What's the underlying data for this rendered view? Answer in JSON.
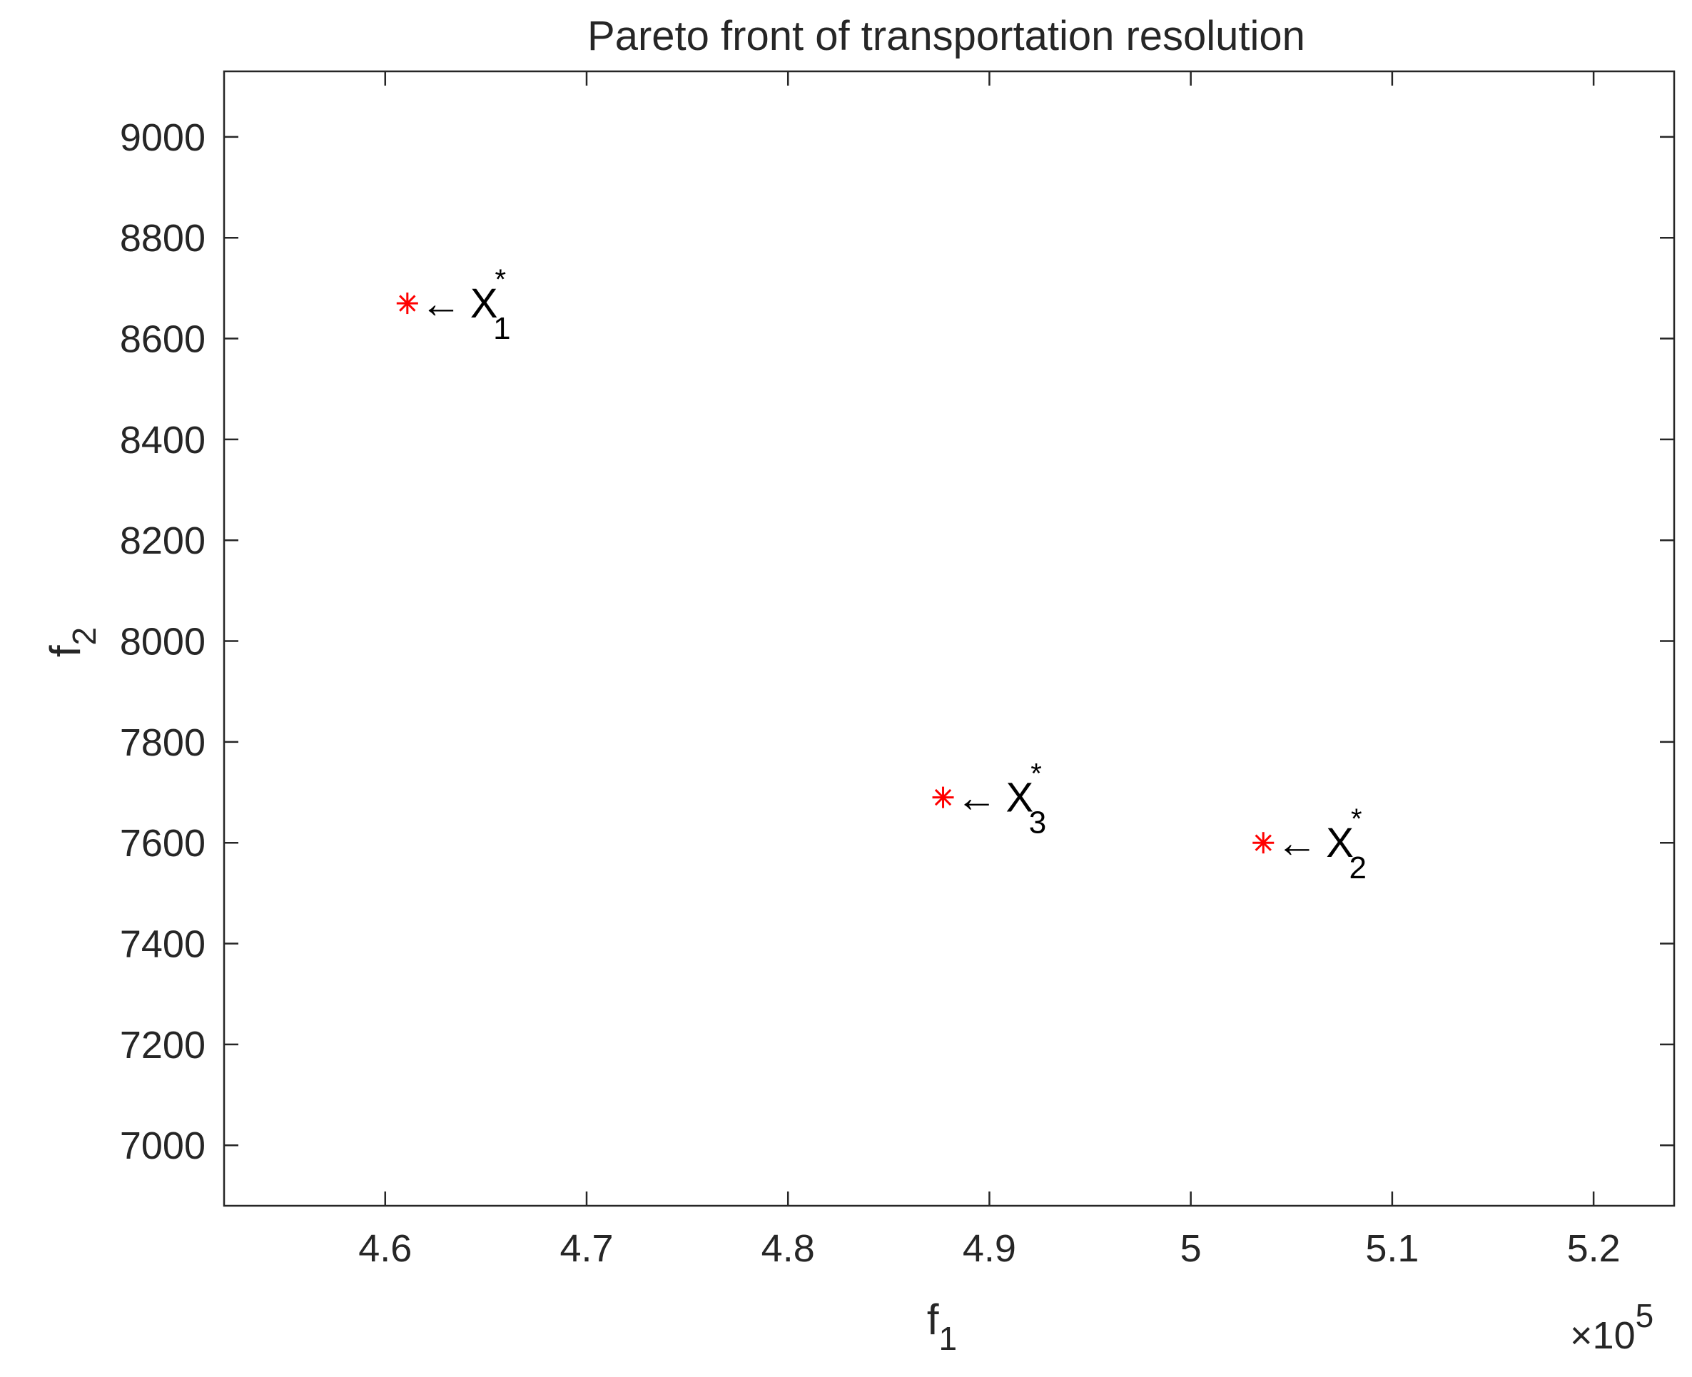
{
  "chart_data": {
    "type": "scatter",
    "title": "Pareto front of transportation resolution",
    "xlabel": {
      "base": "f",
      "sub": "1"
    },
    "ylabel": {
      "base": "f",
      "sub": "2"
    },
    "x_exponent_label": {
      "base": "×10",
      "sup": "5"
    },
    "xlim": [
      4.52,
      5.24
    ],
    "ylim": [
      6880,
      9130
    ],
    "x_ticks": [
      4.6,
      4.7,
      4.8,
      4.9,
      5.0,
      5.1,
      5.2
    ],
    "x_tick_labels": [
      "4.6",
      "4.7",
      "4.8",
      "4.9",
      "5",
      "5.1",
      "5.2"
    ],
    "y_ticks": [
      7000,
      7200,
      7400,
      7600,
      7800,
      8000,
      8200,
      8400,
      8600,
      8800,
      9000
    ],
    "y_tick_labels": [
      "7000",
      "7200",
      "7400",
      "7600",
      "7800",
      "8000",
      "8200",
      "8400",
      "8600",
      "8800",
      "9000"
    ],
    "grid": false,
    "marker": "asterisk",
    "marker_color": "#ff0000",
    "points": [
      {
        "x": 4.611,
        "y": 8670,
        "arrow": "←",
        "label": "X",
        "sub": "1",
        "sup": "*"
      },
      {
        "x": 4.877,
        "y": 7690,
        "arrow": "←",
        "label": "X",
        "sub": "3",
        "sup": "*"
      },
      {
        "x": 5.036,
        "y": 7600,
        "arrow": "←",
        "label": "X",
        "sub": "2",
        "sup": "*"
      }
    ]
  }
}
